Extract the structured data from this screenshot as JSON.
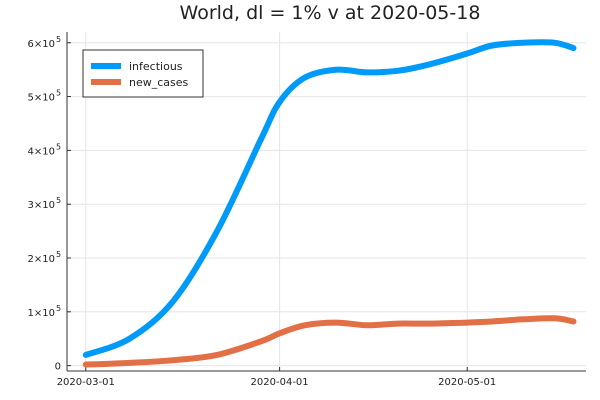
{
  "chart_data": {
    "type": "line",
    "title": "World,  dl = 1% v at 2020-05-18",
    "xlabel": "",
    "ylabel": "",
    "x": [
      "2020-03-01",
      "2020-03-08",
      "2020-03-15",
      "2020-03-22",
      "2020-03-29",
      "2020-04-01",
      "2020-04-05",
      "2020-04-10",
      "2020-04-15",
      "2020-04-20",
      "2020-04-25",
      "2020-05-01",
      "2020-05-05",
      "2020-05-10",
      "2020-05-15",
      "2020-05-18"
    ],
    "xlim": [
      "2020-02-27",
      "2020-05-20"
    ],
    "ylim": [
      -10000,
      620000
    ],
    "xticks": [
      {
        "value": "2020-03-01",
        "label": "2020-03-01"
      },
      {
        "value": "2020-04-01",
        "label": "2020-04-01"
      },
      {
        "value": "2020-05-01",
        "label": "2020-05-01"
      }
    ],
    "yticks": [
      {
        "value": 0,
        "base": "0",
        "exp": ""
      },
      {
        "value": 100000,
        "base": "1×10",
        "exp": "5"
      },
      {
        "value": 200000,
        "base": "2×10",
        "exp": "5"
      },
      {
        "value": 300000,
        "base": "3×10",
        "exp": "5"
      },
      {
        "value": 400000,
        "base": "4×10",
        "exp": "5"
      },
      {
        "value": 500000,
        "base": "5×10",
        "exp": "5"
      },
      {
        "value": 600000,
        "base": "6×10",
        "exp": "5"
      }
    ],
    "grid": true,
    "legend_position": "top-left",
    "series": [
      {
        "name": "infectious",
        "color": "#009af9",
        "values": [
          20000,
          50000,
          120000,
          250000,
          420000,
          490000,
          535000,
          550000,
          545000,
          548000,
          560000,
          580000,
          595000,
          600000,
          600000,
          590000
        ]
      },
      {
        "name": "new_cases",
        "color": "#e26f46",
        "values": [
          2000,
          5000,
          10000,
          20000,
          45000,
          60000,
          75000,
          80000,
          75000,
          78000,
          78000,
          80000,
          82000,
          86000,
          88000,
          82000
        ]
      }
    ]
  }
}
